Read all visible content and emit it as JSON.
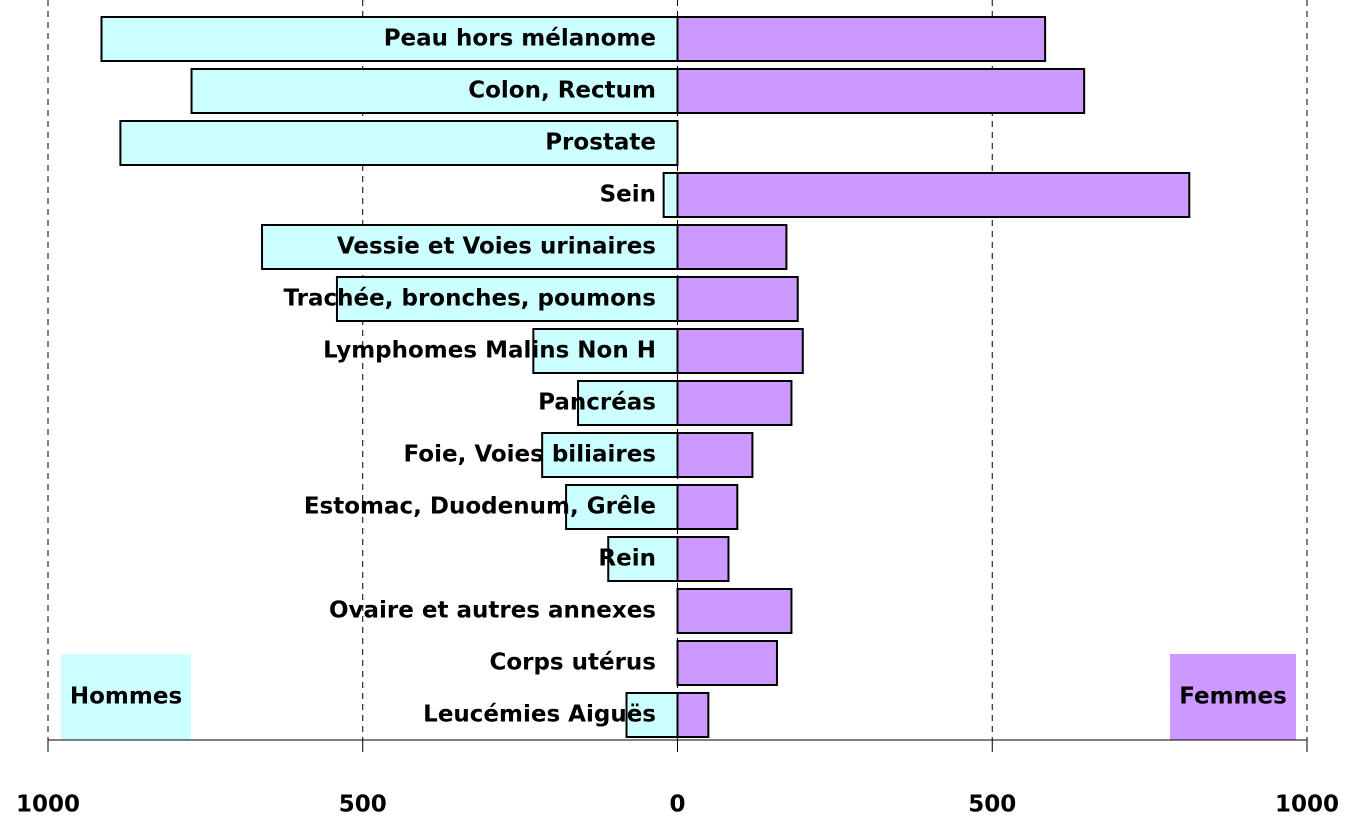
{
  "chart_data": {
    "type": "butterfly-bar",
    "categories": [
      "Peau hors mélanome",
      "Colon, Rectum",
      "Prostate",
      "Sein",
      "Vessie et Voies urinaires",
      "Trachée, bronches, poumons",
      "Lymphomes Malins Non H",
      "Pancréas",
      "Foie, Voies biliaires",
      "Estomac, Duodenum, Grêle",
      "Rein",
      "Ovaire et autres annexes",
      "Corps utérus",
      "Leucémies Aiguës"
    ],
    "series": [
      {
        "name": "Hommes",
        "color": "#ccffff",
        "values": [
          -915,
          -772,
          -885,
          -22,
          -660,
          -541,
          -229,
          -158,
          -215,
          -177,
          -110,
          0,
          0,
          -81
        ]
      },
      {
        "name": "Femmes",
        "color": "#cc99ff",
        "values": [
          584,
          646,
          0,
          813,
          173,
          191,
          199,
          181,
          119,
          95,
          81,
          181,
          158,
          49
        ]
      }
    ],
    "xlim": [
      -1000,
      1000
    ],
    "xticks": [
      {
        "value": -1000,
        "label": "1000"
      },
      {
        "value": -500,
        "label": "500"
      },
      0,
      500,
      1000
    ],
    "grid": true
  }
}
